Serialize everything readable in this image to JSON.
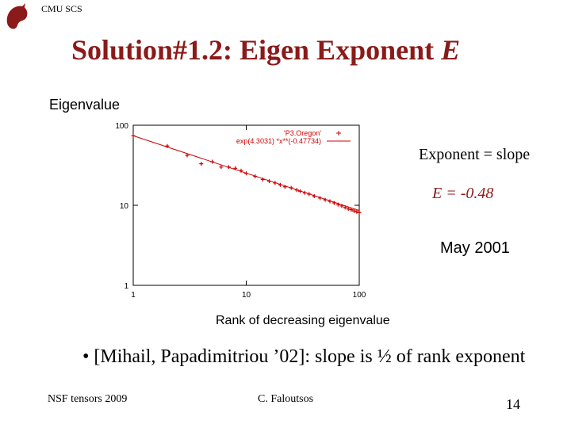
{
  "header": {
    "org": "CMU SCS",
    "title": "Solution#1.2: Eigen Exponent",
    "title_var": "E"
  },
  "notes": {
    "exponent": "Exponent = slope",
    "estimate": "E = -0.48",
    "date": "May 2001"
  },
  "bullet": "[Mihail, Papadimitriou ’02]: slope is ½ of rank exponent",
  "footer": {
    "left": "NSF tensors 2009",
    "center": "C. Faloutsos",
    "page": "14"
  },
  "chart_data": {
    "type": "scatter",
    "ylabel": "Eigenvalue",
    "xlabel": "Rank of decreasing eigenvalue",
    "xscale": "log",
    "yscale": "log",
    "grid": false,
    "xlim": [
      1,
      100
    ],
    "ylim": [
      1,
      100
    ],
    "xticks": [
      1,
      10,
      100
    ],
    "yticks": [
      1,
      10,
      100
    ],
    "legend": "upper right",
    "series": [
      {
        "name": "'P3.Oregon'",
        "color": "#cc0000",
        "marker": "+",
        "x": [
          1,
          2,
          3,
          4,
          5,
          6,
          7,
          8,
          9,
          10,
          12,
          14,
          16,
          18,
          20,
          22,
          25,
          28,
          30,
          33,
          36,
          40,
          45,
          50,
          55,
          60,
          65,
          70,
          75,
          80,
          85,
          90,
          95,
          100
        ],
        "values": [
          74,
          55,
          42,
          33,
          35,
          30,
          30,
          29,
          27,
          25,
          23,
          21,
          20,
          19,
          18,
          17,
          16.5,
          15.5,
          15,
          14.3,
          13.8,
          13,
          12.3,
          11.7,
          11.2,
          10.7,
          10.2,
          9.8,
          9.4,
          9,
          8.8,
          8.5,
          8.3,
          8.1
        ]
      },
      {
        "name": "exp(4.3031) *x**(-0.47734)",
        "color": "#cc0000",
        "marker": "line",
        "x": [
          1,
          100
        ],
        "values": [
          73.9,
          8.6
        ]
      }
    ]
  }
}
